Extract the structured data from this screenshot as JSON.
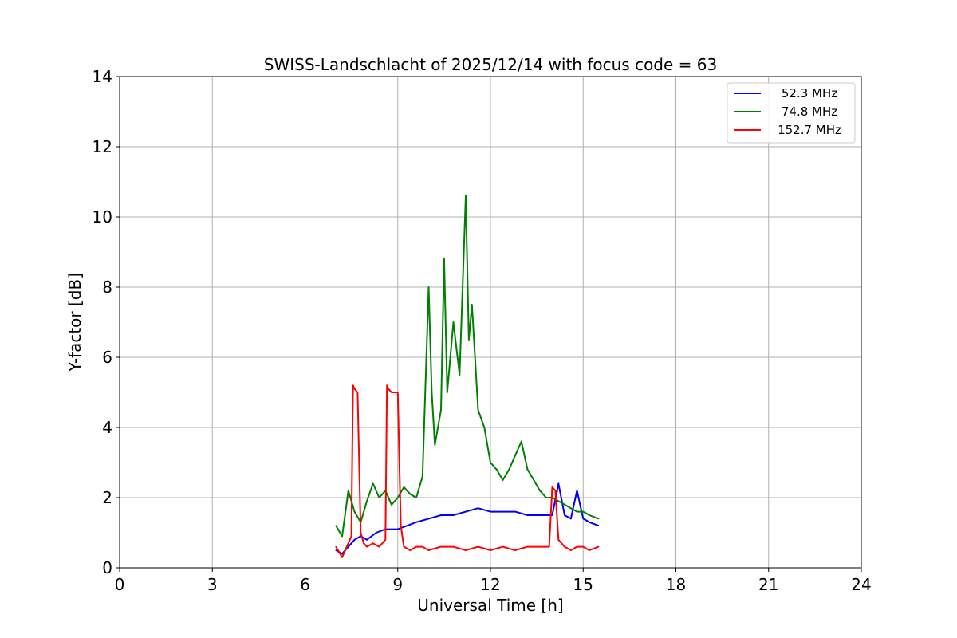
{
  "chart_data": {
    "type": "line",
    "title": "SWISS-Landschlacht of 2025/12/14 with focus code = 63",
    "xlabel": "Universal Time [h]",
    "ylabel": "Y-factor [dB]",
    "xlim": [
      0,
      24
    ],
    "ylim": [
      0,
      14
    ],
    "xticks": [
      0,
      3,
      6,
      9,
      12,
      15,
      18,
      21,
      24
    ],
    "yticks": [
      0,
      2,
      4,
      6,
      8,
      10,
      12,
      14
    ],
    "grid": true,
    "legend_position": "top-right",
    "series": [
      {
        "name": "52.3 MHz",
        "color": "#0000ff",
        "x": [
          7.0,
          7.2,
          7.4,
          7.6,
          7.8,
          8.0,
          8.3,
          8.6,
          9.0,
          9.3,
          9.6,
          10.0,
          10.4,
          10.8,
          11.2,
          11.6,
          12.0,
          12.4,
          12.8,
          13.2,
          13.6,
          14.0,
          14.2,
          14.4,
          14.6,
          14.8,
          15.0,
          15.2,
          15.5
        ],
        "y": [
          0.5,
          0.4,
          0.6,
          0.8,
          0.9,
          0.8,
          1.0,
          1.1,
          1.1,
          1.2,
          1.3,
          1.4,
          1.5,
          1.5,
          1.6,
          1.7,
          1.6,
          1.6,
          1.6,
          1.5,
          1.5,
          1.5,
          2.4,
          1.5,
          1.4,
          2.2,
          1.4,
          1.3,
          1.2
        ]
      },
      {
        "name": "74.8 MHz",
        "color": "#008000",
        "x": [
          7.0,
          7.2,
          7.4,
          7.6,
          7.8,
          8.0,
          8.2,
          8.4,
          8.6,
          8.8,
          9.0,
          9.2,
          9.4,
          9.6,
          9.8,
          10.0,
          10.1,
          10.2,
          10.4,
          10.5,
          10.6,
          10.8,
          11.0,
          11.2,
          11.3,
          11.4,
          11.6,
          11.8,
          12.0,
          12.2,
          12.4,
          12.6,
          12.8,
          13.0,
          13.2,
          13.4,
          13.6,
          13.8,
          14.0,
          14.2,
          14.4,
          14.6,
          14.8,
          15.0,
          15.2,
          15.5
        ],
        "y": [
          1.2,
          0.9,
          2.2,
          1.6,
          1.3,
          1.9,
          2.4,
          2.0,
          2.2,
          1.8,
          2.0,
          2.3,
          2.1,
          2.0,
          2.6,
          8.0,
          5.0,
          3.5,
          4.5,
          8.8,
          5.0,
          7.0,
          5.5,
          10.6,
          6.5,
          7.5,
          4.5,
          4.0,
          3.0,
          2.8,
          2.5,
          2.8,
          3.2,
          3.6,
          2.8,
          2.5,
          2.2,
          2.0,
          2.0,
          1.9,
          1.8,
          1.7,
          1.6,
          1.6,
          1.5,
          1.4
        ]
      },
      {
        "name": "152.7 MHz",
        "color": "#ff0000",
        "x": [
          7.0,
          7.2,
          7.4,
          7.5,
          7.55,
          7.6,
          7.7,
          7.8,
          7.9,
          8.0,
          8.2,
          8.4,
          8.6,
          8.65,
          8.7,
          8.8,
          9.0,
          9.1,
          9.2,
          9.4,
          9.6,
          9.8,
          10.0,
          10.4,
          10.8,
          11.2,
          11.6,
          12.0,
          12.4,
          12.8,
          13.2,
          13.6,
          13.9,
          14.0,
          14.1,
          14.2,
          14.4,
          14.6,
          14.8,
          15.0,
          15.2,
          15.5
        ],
        "y": [
          0.6,
          0.3,
          0.7,
          0.9,
          5.2,
          5.1,
          5.0,
          1.0,
          0.7,
          0.6,
          0.7,
          0.6,
          0.8,
          5.2,
          5.1,
          5.0,
          5.0,
          1.2,
          0.6,
          0.5,
          0.6,
          0.6,
          0.5,
          0.6,
          0.6,
          0.5,
          0.6,
          0.5,
          0.6,
          0.5,
          0.6,
          0.6,
          0.6,
          2.3,
          2.2,
          0.8,
          0.6,
          0.5,
          0.6,
          0.6,
          0.5,
          0.6
        ]
      }
    ]
  }
}
